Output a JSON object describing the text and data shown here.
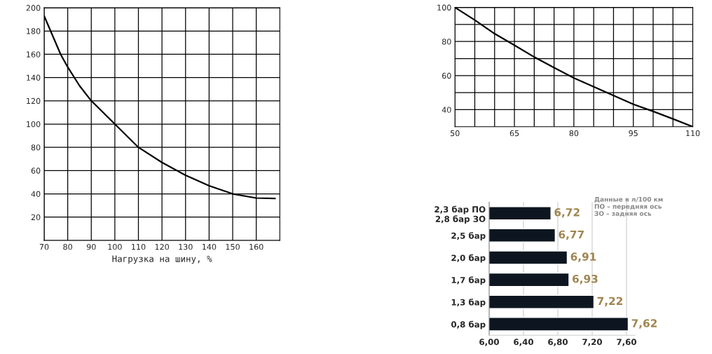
{
  "chart_data": [
    {
      "type": "line",
      "xlabel": "Нагрузка на шину, %",
      "x": [
        70,
        77,
        80,
        85,
        90,
        100,
        110,
        120,
        130,
        140,
        150,
        160,
        168
      ],
      "series": [
        {
          "color": "#000000",
          "values": [
            193,
            160,
            149,
            133,
            120,
            100,
            80,
            67,
            56,
            47,
            40,
            36.4,
            36
          ]
        }
      ],
      "xlim": [
        70,
        170
      ],
      "xticks": [
        70,
        80,
        90,
        100,
        110,
        120,
        130,
        140,
        150,
        160
      ],
      "ylim": [
        0,
        200
      ],
      "yticks": [
        20,
        40,
        60,
        80,
        100,
        120,
        140,
        160,
        180,
        200
      ],
      "grid": true,
      "marker": "none",
      "line_style": "solid"
    },
    {
      "type": "line",
      "x": [
        50,
        55,
        60,
        65,
        70,
        75,
        80,
        85,
        90,
        95,
        100,
        105,
        110
      ],
      "series": [
        {
          "color": "#000000",
          "values": [
            100,
            92.6,
            84.6,
            77.8,
            70.9,
            64.7,
            58.6,
            53.5,
            48.3,
            43.2,
            39,
            34.6,
            30
          ]
        }
      ],
      "xlim": [
        50,
        110
      ],
      "xticks": [
        50,
        {
          "value": 55,
          "label": null
        },
        {
          "value": 60,
          "label": null
        },
        65,
        {
          "value": 70,
          "label": null
        },
        {
          "value": 75,
          "label": null
        },
        80,
        {
          "value": 85,
          "label": null
        },
        {
          "value": 90,
          "label": null
        },
        95,
        {
          "value": 100,
          "label": null
        },
        {
          "value": 105,
          "label": null
        },
        110
      ],
      "ylim": [
        30,
        100
      ],
      "yticks": [
        40,
        {
          "value": 50,
          "label": null
        },
        60,
        {
          "value": 70,
          "label": null
        },
        80,
        {
          "value": 90,
          "label": null
        },
        100
      ],
      "grid": true,
      "marker": "none",
      "line_style": "solid"
    },
    {
      "type": "bar",
      "orientation": "horizontal",
      "categories": [
        "2,3 бар ПО\n2,8 бар ЗО",
        "2,5 бар",
        "2,0 бар",
        "1,7 бар",
        "1,3 бар",
        "0,8 бар"
      ],
      "values": [
        6.72,
        6.77,
        6.91,
        6.93,
        7.22,
        7.62
      ],
      "color": "#0d1620",
      "value_labels": [
        "6,72",
        "6,77",
        "6,91",
        "6,93",
        "7,22",
        "7,62"
      ],
      "xlim": [
        6.0,
        7.7
      ],
      "xticks": [
        {
          "value": 6.0,
          "label": "6,00"
        },
        {
          "value": 6.4,
          "label": "6,40"
        },
        {
          "value": 6.8,
          "label": "6,80"
        },
        {
          "value": 7.2,
          "label": "7,20"
        },
        {
          "value": 7.6,
          "label": "7,60"
        }
      ],
      "grid": "x",
      "annotations": [
        "Данные в л/100 км\nПО – передняя ось\nЗО – задняя ось"
      ]
    }
  ]
}
